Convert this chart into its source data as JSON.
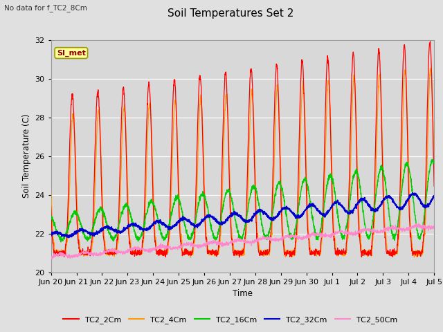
{
  "title": "Soil Temperatures Set 2",
  "subtitle": "No data for f_TC2_8Cm",
  "xlabel": "Time",
  "ylabel": "Soil Temperature (C)",
  "ylim": [
    20,
    32
  ],
  "bg_color": "#e0e0e0",
  "plot_bg_color": "#d8d8d8",
  "legend_label": "SI_met",
  "series_colors": {
    "TC2_2Cm": "#ff0000",
    "TC2_4Cm": "#ff9900",
    "TC2_16Cm": "#00cc00",
    "TC2_32Cm": "#0000cc",
    "TC2_50Cm": "#ff88cc"
  },
  "xtick_labels": [
    "Jun 20",
    "Jun 21",
    "Jun 22",
    "Jun 23",
    "Jun 24",
    "Jun 25",
    "Jun 26",
    "Jun 27",
    "Jun 28",
    "Jun 29",
    "Jun 30",
    "Jul 1",
    "Jul 2",
    "Jul 3",
    "Jul 4",
    "Jul 5"
  ],
  "n_days": 15,
  "pts_per_day": 144
}
